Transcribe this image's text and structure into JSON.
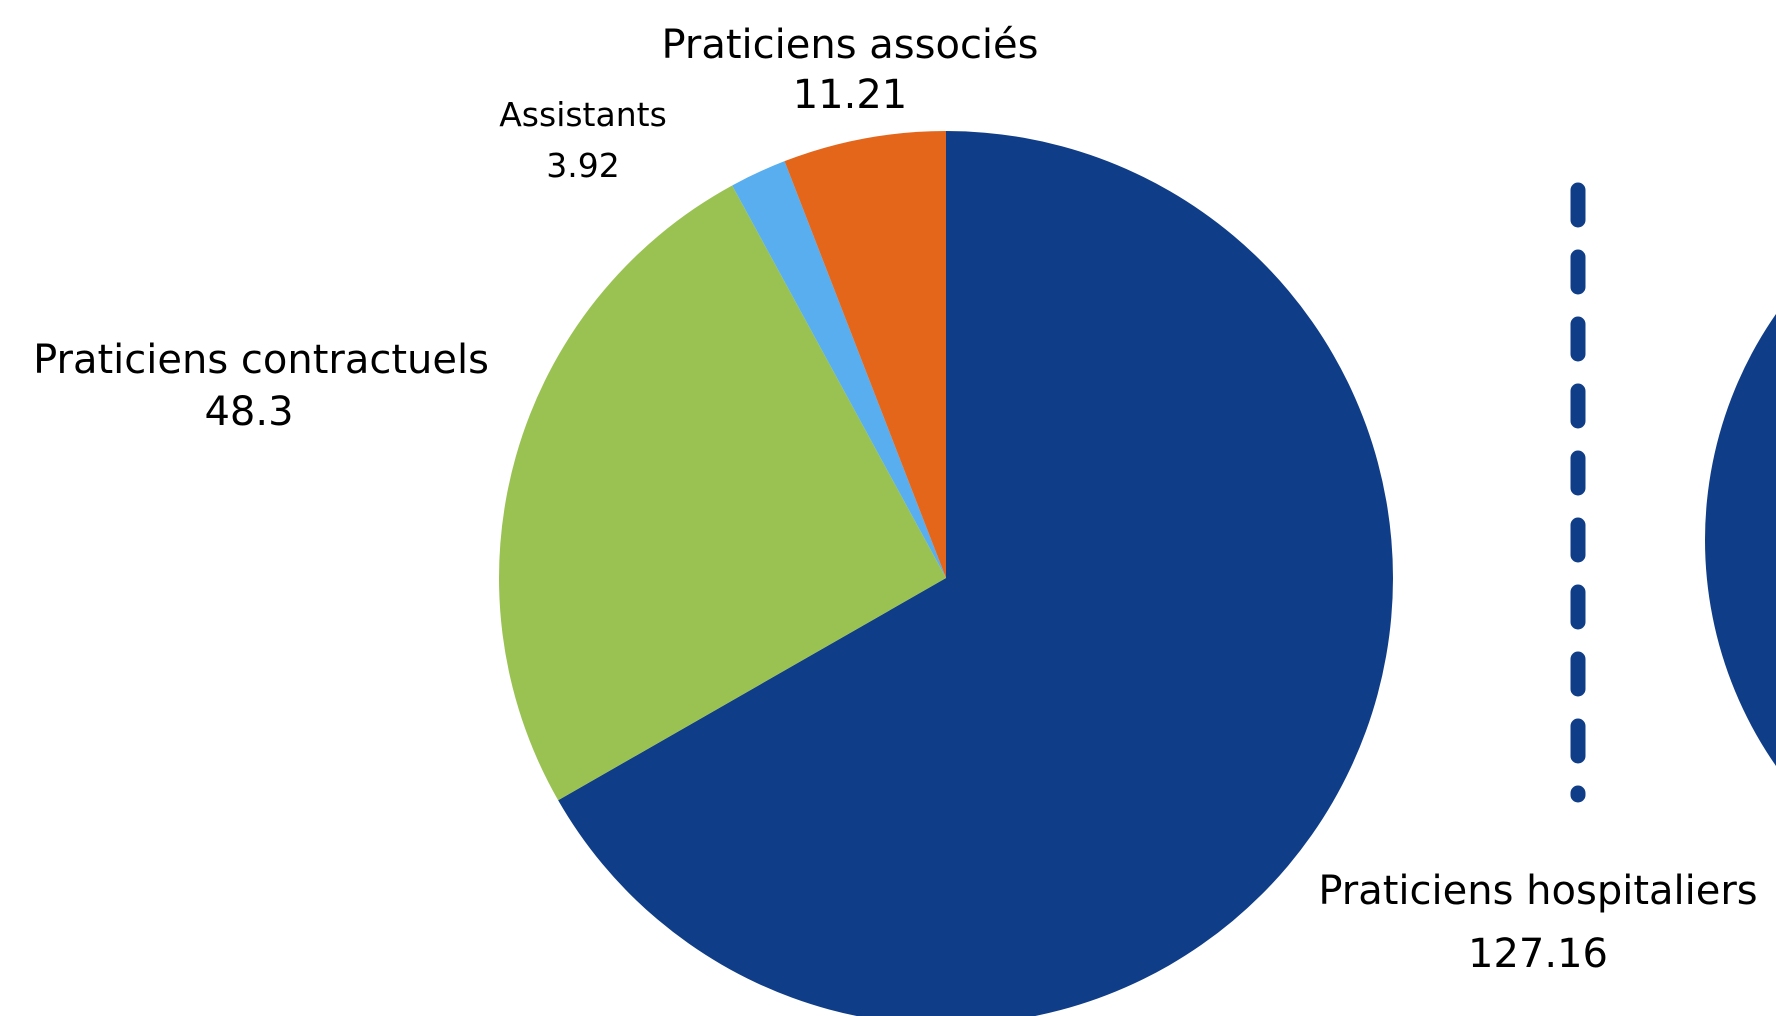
{
  "chart_data": {
    "type": "pie",
    "slices": [
      {
        "label": "Praticiens hospitaliers",
        "value": 127.16,
        "display_value": "127.16",
        "color": "#103d87"
      },
      {
        "label": "Praticiens contractuels",
        "value": 48.3,
        "display_value": "48.3",
        "color": "#99c252"
      },
      {
        "label": "Assistants",
        "value": 3.92,
        "display_value": "3.92",
        "color": "#58aeee"
      },
      {
        "label": "Praticiens associés",
        "value": 11.21,
        "display_value": "11.21",
        "color": "#e3661b"
      }
    ],
    "start_angle": "12 o'clock",
    "direction": "clockwise",
    "label_position": "outside",
    "separator": {
      "style": "dashed",
      "color": "#103d87"
    },
    "secondary_chart": {
      "type": "pie",
      "color": "#103d87",
      "partially_visible": true
    }
  }
}
